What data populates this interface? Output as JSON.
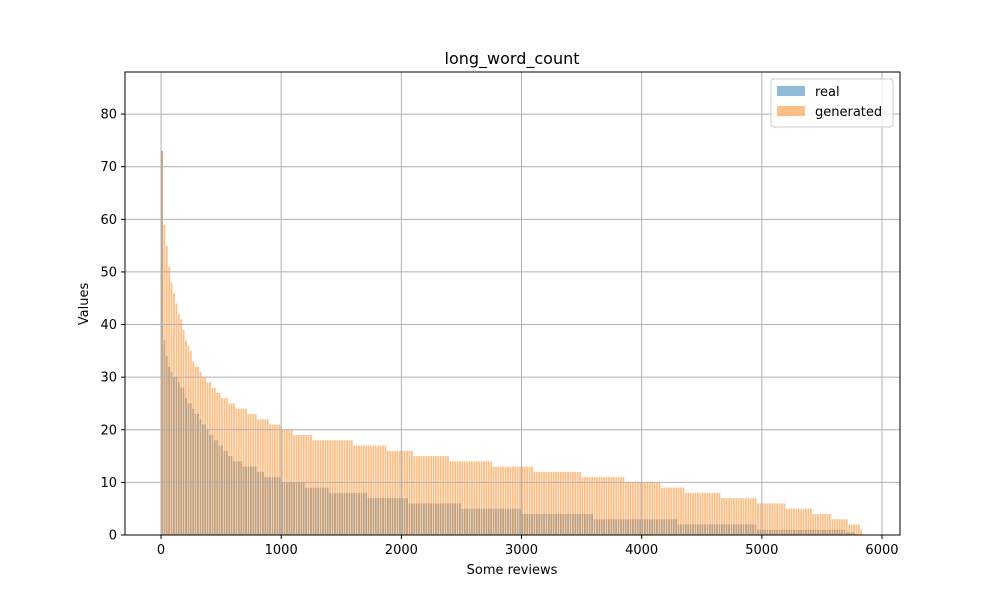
{
  "chart_data": {
    "type": "bar",
    "title": "long_word_count",
    "xlabel": "Some reviews",
    "ylabel": "Values",
    "xlim": [
      -300,
      6150
    ],
    "ylim": [
      0,
      88
    ],
    "xticks": [
      0,
      1000,
      2000,
      3000,
      4000,
      5000,
      6000
    ],
    "yticks": [
      0,
      10,
      20,
      30,
      40,
      50,
      60,
      70,
      80
    ],
    "grid": true,
    "legend_position": "top-right",
    "series": [
      {
        "name": "real",
        "color": "#1f77b4",
        "alpha": 0.5,
        "steps": [
          [
            0,
            73
          ],
          [
            10,
            44
          ],
          [
            20,
            37
          ],
          [
            40,
            34
          ],
          [
            60,
            32
          ],
          [
            80,
            31
          ],
          [
            100,
            30
          ],
          [
            130,
            29
          ],
          [
            160,
            28
          ],
          [
            190,
            26
          ],
          [
            220,
            25
          ],
          [
            250,
            24
          ],
          [
            280,
            23
          ],
          [
            310,
            22
          ],
          [
            340,
            21
          ],
          [
            370,
            20
          ],
          [
            400,
            19
          ],
          [
            440,
            18
          ],
          [
            480,
            17
          ],
          [
            520,
            16
          ],
          [
            560,
            15
          ],
          [
            600,
            14
          ],
          [
            680,
            13
          ],
          [
            800,
            12
          ],
          [
            850,
            11
          ],
          [
            1000,
            10
          ],
          [
            1200,
            9
          ],
          [
            1400,
            8
          ],
          [
            1720,
            7
          ],
          [
            2050,
            6
          ],
          [
            2500,
            5
          ],
          [
            3000,
            4
          ],
          [
            3600,
            3
          ],
          [
            4300,
            2
          ],
          [
            4950,
            1
          ],
          [
            5700,
            0.5
          ],
          [
            5780,
            0
          ]
        ],
        "x_end": 5830
      },
      {
        "name": "generated",
        "color": "#ff7f0e",
        "alpha": 0.5,
        "steps": [
          [
            0,
            73
          ],
          [
            10,
            64
          ],
          [
            20,
            59
          ],
          [
            40,
            55
          ],
          [
            60,
            51
          ],
          [
            80,
            48
          ],
          [
            100,
            46
          ],
          [
            120,
            44
          ],
          [
            140,
            42
          ],
          [
            160,
            41
          ],
          [
            180,
            39
          ],
          [
            200,
            37
          ],
          [
            220,
            36
          ],
          [
            240,
            35
          ],
          [
            260,
            33
          ],
          [
            280,
            32
          ],
          [
            310,
            31
          ],
          [
            340,
            30
          ],
          [
            380,
            29
          ],
          [
            420,
            28
          ],
          [
            460,
            27
          ],
          [
            500,
            26
          ],
          [
            560,
            25
          ],
          [
            620,
            24
          ],
          [
            720,
            23
          ],
          [
            800,
            22
          ],
          [
            900,
            21
          ],
          [
            1000,
            20
          ],
          [
            1100,
            19
          ],
          [
            1250,
            18
          ],
          [
            1600,
            17
          ],
          [
            1880,
            16
          ],
          [
            2100,
            15
          ],
          [
            2400,
            14
          ],
          [
            2750,
            13
          ],
          [
            3100,
            12
          ],
          [
            3500,
            11
          ],
          [
            3850,
            10
          ],
          [
            4150,
            9
          ],
          [
            4350,
            8
          ],
          [
            4650,
            7
          ],
          [
            4950,
            6
          ],
          [
            5200,
            5
          ],
          [
            5420,
            4
          ],
          [
            5580,
            3
          ],
          [
            5720,
            2
          ],
          [
            5820,
            1
          ]
        ],
        "x_end": 5840
      }
    ]
  }
}
